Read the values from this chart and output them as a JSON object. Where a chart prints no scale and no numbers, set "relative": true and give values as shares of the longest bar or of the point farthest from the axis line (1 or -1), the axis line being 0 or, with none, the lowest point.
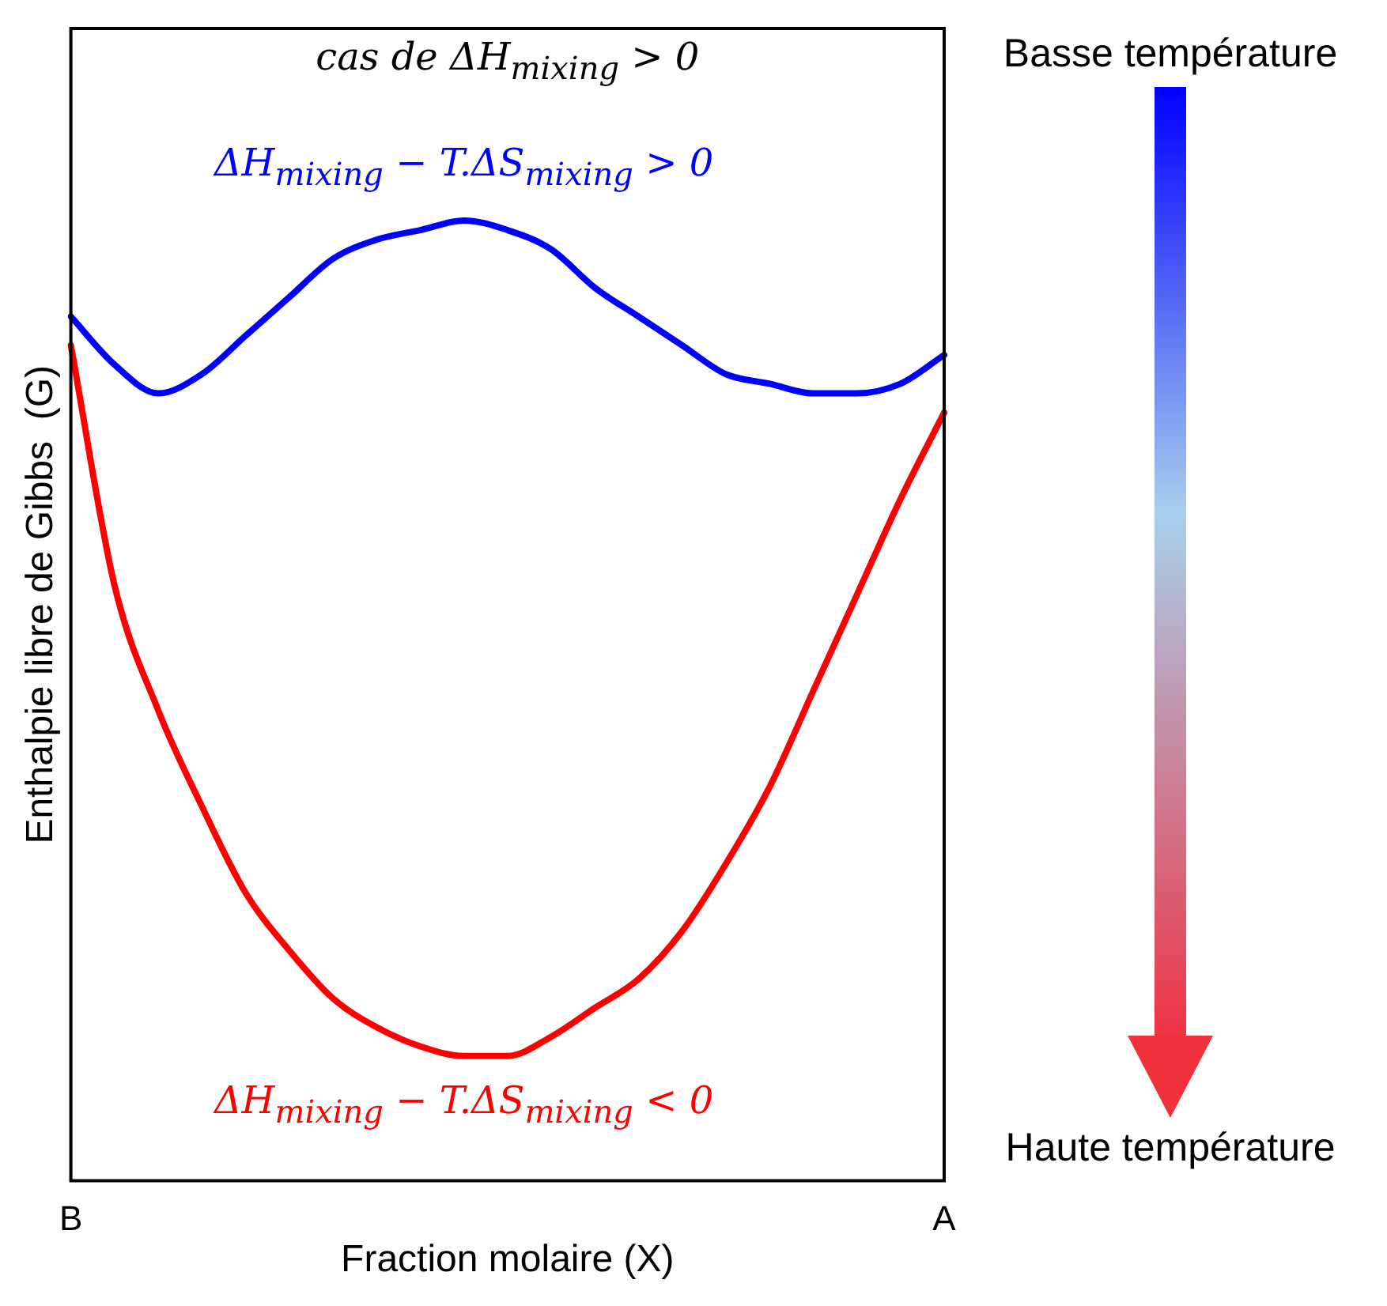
{
  "chart_data": {
    "type": "line",
    "relative": true,
    "title": "cas de ΔH$_{mixing}$ > 0",
    "xlabel": "Fraction molaire (X)",
    "ylabel": "Enthalpie libre de Gibbs  (G)",
    "categories": [
      "B",
      null,
      null,
      null,
      null,
      null,
      null,
      null,
      null,
      null,
      null,
      null,
      null,
      null,
      null,
      null,
      null,
      null,
      null,
      null,
      "A"
    ],
    "series": [
      {
        "name": "ΔH$_{mixing}$ − T.ΔS$_{mixing}$ > 0",
        "color": "#0000ff",
        "values": [
          0.9,
          0.85,
          0.82,
          0.84,
          0.88,
          0.92,
          0.96,
          0.98,
          0.99,
          1,
          0.99,
          0.97,
          0.93,
          0.9,
          0.87,
          0.84,
          0.83,
          0.82,
          0.82,
          0.83,
          0.86
        ]
      },
      {
        "name": "ΔH$_{mixing}$ − T.ΔS$_{mixing}$ < 0",
        "color": "#ff0000",
        "values": [
          0.87,
          0.62,
          0.49,
          0.39,
          0.3,
          0.24,
          0.19,
          0.16,
          0.14,
          0.13,
          0.13,
          0.15,
          0.18,
          0.21,
          0.26,
          0.33,
          0.41,
          0.51,
          0.61,
          0.71,
          0.8
        ]
      }
    ],
    "annotations": [
      "Basse température",
      "Haute température"
    ],
    "grid": false,
    "legend": false,
    "marker": "none",
    "line_style": "solid",
    "tick_labels": "x"
  }
}
